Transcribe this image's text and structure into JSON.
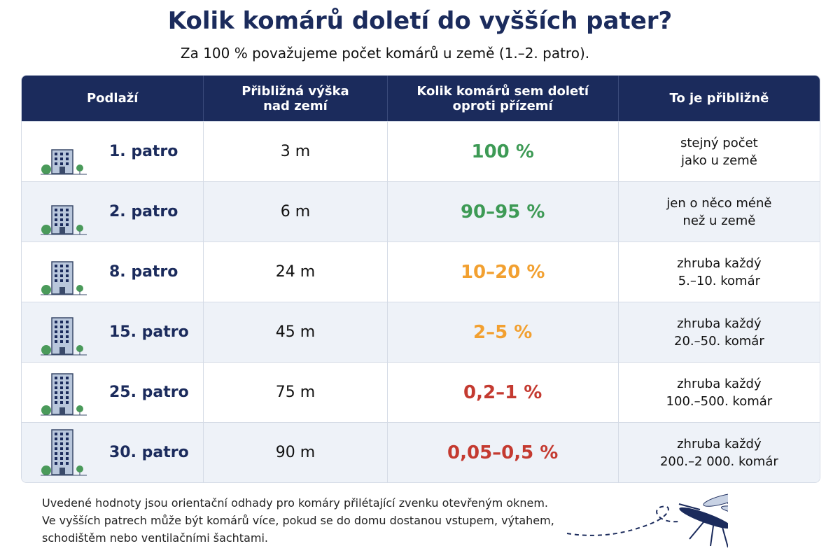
{
  "header": {
    "title": "Kolik komárů doletí do vyšších pater?",
    "subtitle": "Za 100 % považujeme počet komárů u země (1.–2. patro)."
  },
  "table": {
    "columns": [
      [
        "Podlaží"
      ],
      [
        "Přibližná výška",
        "nad zemí"
      ],
      [
        "Kolik komárů sem doletí",
        "oproti přízemí"
      ],
      [
        "To je přibližně"
      ]
    ],
    "rows": [
      {
        "floor": "1. patro",
        "height": "3 m",
        "share": "100 %",
        "share_color": "#3d9a55",
        "approx": [
          "stejný počet",
          "jako u země"
        ]
      },
      {
        "floor": "2. patro",
        "height": "6 m",
        "share": "90–95 %",
        "share_color": "#3d9a55",
        "approx": [
          "jen o něco méně",
          "než u země"
        ]
      },
      {
        "floor": "8. patro",
        "height": "24 m",
        "share": "10–20 %",
        "share_color": "#f2a030",
        "approx": [
          "zhruba každý",
          "5.–10. komár"
        ]
      },
      {
        "floor": "15. patro",
        "height": "45 m",
        "share": "2–5 %",
        "share_color": "#f2a030",
        "approx": [
          "zhruba každý",
          "20.–50. komár"
        ]
      },
      {
        "floor": "25. patro",
        "height": "75 m",
        "share": "0,2–1 %",
        "share_color": "#c43a30",
        "approx": [
          "zhruba každý",
          "100.–500. komár"
        ]
      },
      {
        "floor": "30. patro",
        "height": "90 m",
        "share": "0,05–0,5 %",
        "share_color": "#c43a30",
        "approx": [
          "zhruba každý",
          "200.–2 000. komár"
        ]
      }
    ]
  },
  "footnote": [
    "Uvedené hodnoty jsou orientační odhady pro komáry přilétající zvenku otevřeným oknem.",
    "Ve vyšších patrech může být komárů více, pokud se do domu dostanou vstupem, výtahem,",
    "schodištěm nebo ventilačními šachtami."
  ]
}
